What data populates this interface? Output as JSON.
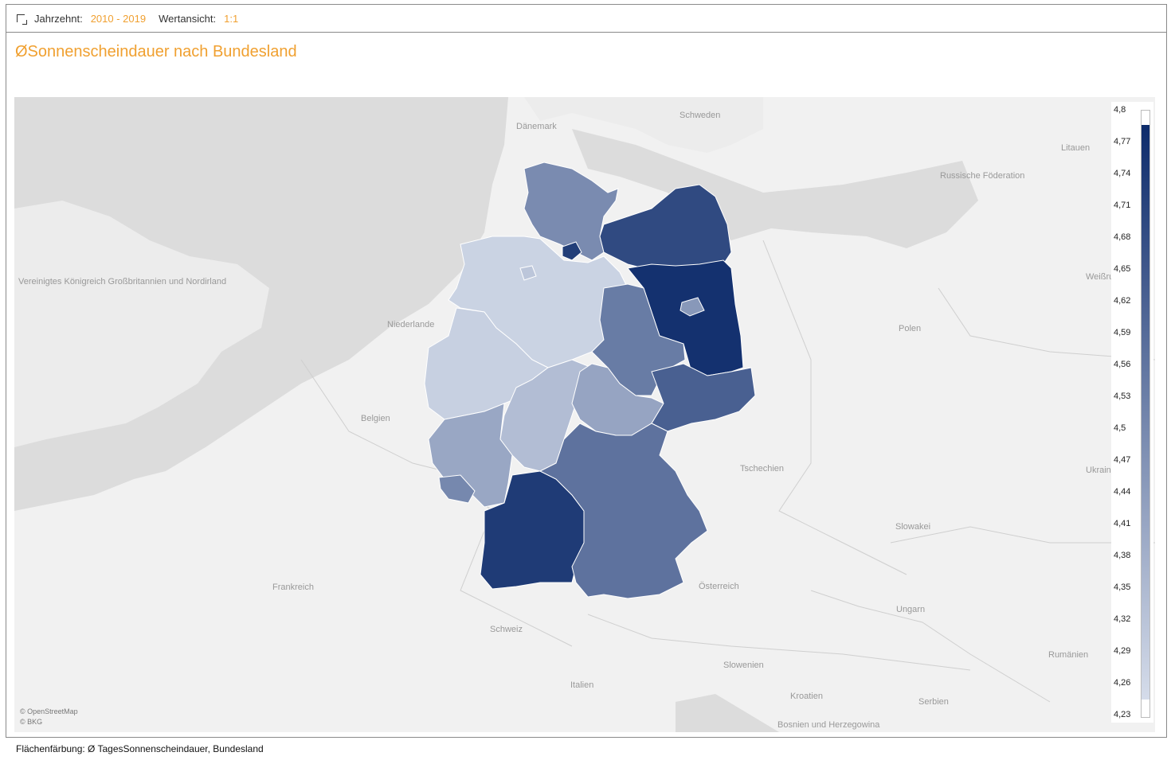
{
  "filter": {
    "decade_label": "Jahrzehnt:",
    "decade_value": "2010 - 2019",
    "view_label": "Wertansicht:",
    "view_value": "1:1"
  },
  "title": "ØSonnenscheindauer nach Bundesland",
  "countries": [
    {
      "key": "daenemark",
      "label": "Dänemark"
    },
    {
      "key": "schweden",
      "label": "Schweden"
    },
    {
      "key": "litauen",
      "label": "Litauen"
    },
    {
      "key": "russland",
      "label": "Russische Föderation"
    },
    {
      "key": "uk",
      "label": "Vereinigtes Königreich Großbritannien und Nordirland"
    },
    {
      "key": "weissrussland",
      "label": "Weißrussland"
    },
    {
      "key": "niederlande",
      "label": "Niederlande"
    },
    {
      "key": "polen",
      "label": "Polen"
    },
    {
      "key": "belgien",
      "label": "Belgien"
    },
    {
      "key": "tschechien",
      "label": "Tschechien"
    },
    {
      "key": "ukraine",
      "label": "Ukraine"
    },
    {
      "key": "slowakei",
      "label": "Slowakei"
    },
    {
      "key": "frankreich",
      "label": "Frankreich"
    },
    {
      "key": "oesterreich",
      "label": "Österreich"
    },
    {
      "key": "ungarn",
      "label": "Ungarn"
    },
    {
      "key": "schweiz",
      "label": "Schweiz"
    },
    {
      "key": "rumaenien",
      "label": "Rumänien"
    },
    {
      "key": "slowenien",
      "label": "Slowenien"
    },
    {
      "key": "italien",
      "label": "Italien"
    },
    {
      "key": "kroatien",
      "label": "Kroatien"
    },
    {
      "key": "serbien",
      "label": "Serbien"
    },
    {
      "key": "bosnien",
      "label": "Bosnien und Herzegowina"
    }
  ],
  "legend": {
    "ticks": [
      "4,8",
      "4,77",
      "4,74",
      "4,71",
      "4,68",
      "4,65",
      "4,62",
      "4,59",
      "4,56",
      "4,53",
      "4,5",
      "4,47",
      "4,44",
      "4,41",
      "4,38",
      "4,35",
      "4,32",
      "4,29",
      "4,26",
      "4,23"
    ],
    "min": 4.23,
    "max": 4.8,
    "color_low": "#d5dcea",
    "color_high": "#0d2b6b"
  },
  "states": {
    "schleswig_holstein": 4.49,
    "hamburg": 4.74,
    "mecklenburg_vorpommern": 4.7,
    "bremen": 4.3,
    "niedersachsen": 4.26,
    "berlin": 4.45,
    "brandenburg": 4.78,
    "sachsen_anhalt": 4.54,
    "nordrhein_westfalen": 4.27,
    "hessen": 4.33,
    "thueringen": 4.41,
    "sachsen": 4.63,
    "rheinland_pfalz": 4.4,
    "saarland": 4.5,
    "baden_wuerttemberg": 4.75,
    "bayern": 4.57
  },
  "attribution": [
    "© OpenStreetMap",
    "© BKG"
  ],
  "footer": "Flächenfärbung: Ø TagesSonnenscheindauer, Bundesland"
}
